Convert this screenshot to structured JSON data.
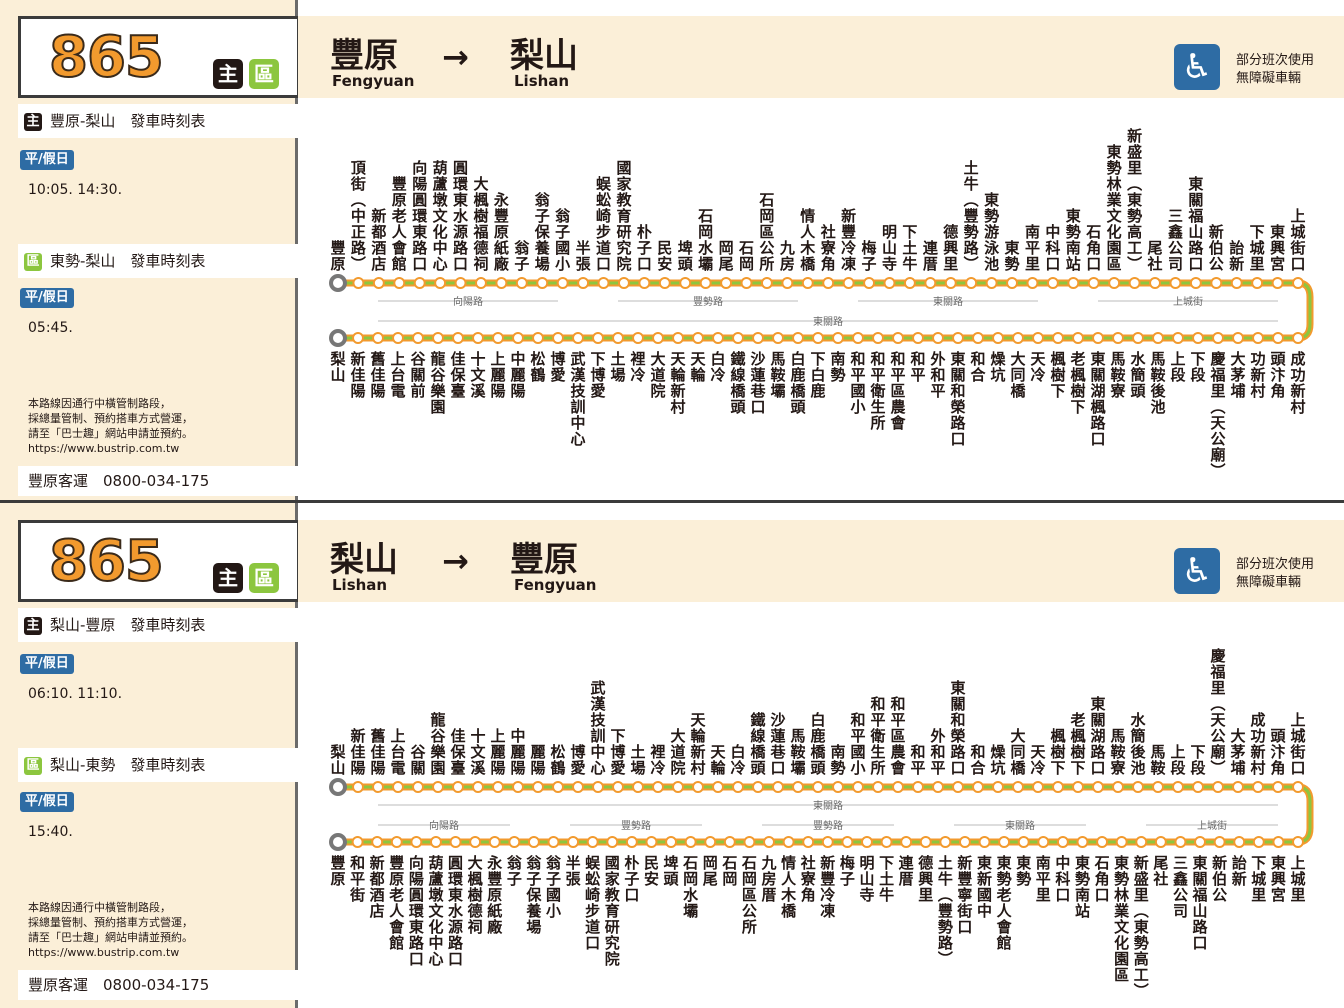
{
  "panels": [
    {
      "route_number": "865",
      "badge_main": "主",
      "badge_zone": "區",
      "from_zh": "豐原",
      "from_en": "Fengyuan",
      "to_zh": "梨山",
      "to_en": "Lishan",
      "arrow": "→",
      "accessible_text_1": "部分班次使用",
      "accessible_text_2": "無障礙車輛",
      "accessible_icon": "wheelchair-icon",
      "section1_title": "豐原-梨山　發車時刻表",
      "section1_pill": "平/假日",
      "section1_times": "10:05. 14:30.",
      "section2_title": "東勢-梨山　發車時刻表",
      "section2_pill": "平/假日",
      "section2_times": "05:45.",
      "note_1": "本路線因通行中橫管制路段，",
      "note_2": "採總量管制、預約搭車方式營運，",
      "note_3": "請至「巴士趣」網站申請並預約。",
      "note_4": "https://www.bustrip.com.tw",
      "company": "豐原客運　0800-034-175",
      "top_stops": [
        "豐原",
        "頂街(中正路)",
        "新都酒店",
        "豐原老人會館",
        "向陽圓環東路口",
        "葫蘆墩文化中心",
        "圓環東水源路口",
        "大楓樹福德祠",
        "永豐原紙廠",
        "翁子",
        "翁子保養場",
        "翁子國小",
        "半張",
        "蜈蚣崎步道口",
        "國家教育研究院",
        "朴子口",
        "民安",
        "埤頭",
        "石岡水壩",
        "岡尾",
        "石岡",
        "石岡區公所",
        "九房",
        "情人木橋",
        "社寮角",
        "新豐冷凍",
        "梅子",
        "明山寺",
        "下土牛",
        "連厝",
        "德興里",
        "土牛(豐勢路)",
        "東勢游泳池",
        "東勢",
        "南平里",
        "中科口",
        "東勢南站",
        "石角口",
        "東勢林業文化園區",
        "新盛里(東勢高工)",
        "尾社",
        "三鑫公司",
        "東關福山路口",
        "新伯公",
        "詒新",
        "下城里",
        "東興宮",
        "上城街口"
      ],
      "bottom_stops": [
        "梨山",
        "新佳陽",
        "舊佳陽",
        "上台電",
        "谷關前",
        "龍谷樂園",
        "佳保臺",
        "十文溪",
        "上麗陽",
        "中麗陽",
        "松鶴",
        "博愛",
        "武漢技訓中心",
        "下博愛",
        "土場",
        "裡冷",
        "大道院",
        "天輪新村",
        "天輪",
        "白冷",
        "鐵線橋頭",
        "沙蓮巷口",
        "馬鞍壩",
        "白鹿橋頭",
        "下白鹿",
        "南勢",
        "和平國小",
        "和平衛生所",
        "和平區農會",
        "和平",
        "外和平",
        "東關和榮路口",
        "和合",
        "燥坑",
        "大同橋",
        "天冷",
        "楓樹下",
        "老楓樹下",
        "東關湖楓路口",
        "馬鞍寮",
        "水簡頭",
        "馬鞍後池",
        "上段",
        "下段",
        "慶福里(天公廟)",
        "大茅埔",
        "功新村",
        "頭汴角",
        "成功新村"
      ],
      "top_segments": [
        {
          "label": "向陽路"
        },
        {
          "label": "豐勢路"
        },
        {
          "label": "東關路"
        },
        {
          "label": "上城街"
        }
      ],
      "bottom_segment": "東關路"
    },
    {
      "route_number": "865",
      "badge_main": "主",
      "badge_zone": "區",
      "from_zh": "梨山",
      "from_en": "Lishan",
      "to_zh": "豐原",
      "to_en": "Fengyuan",
      "arrow": "→",
      "accessible_text_1": "部分班次使用",
      "accessible_text_2": "無障礙車輛",
      "accessible_icon": "wheelchair-icon",
      "section1_title": "梨山-豐原　發車時刻表",
      "section1_pill": "平/假日",
      "section1_times": "06:10. 11:10.",
      "section2_title": "梨山-東勢　發車時刻表",
      "section2_pill": "平/假日",
      "section2_times": "15:40.",
      "note_1": "本路線因通行中橫管制路段，",
      "note_2": "採總量管制、預約搭車方式營運，",
      "note_3": "請至「巴士趣」網站申請並預約。",
      "note_4": "https://www.bustrip.com.tw",
      "company": "豐原客運　0800-034-175",
      "top_stops": [
        "梨山",
        "新佳陽",
        "舊佳陽",
        "上台電",
        "谷關",
        "龍谷樂園",
        "佳保臺",
        "十文溪",
        "上麗陽",
        "中麗陽",
        "麗陽",
        "松鶴",
        "博愛",
        "武漢技訓中心",
        "下博愛",
        "土場",
        "裡冷",
        "大道院",
        "天輪新村",
        "天輪",
        "白冷",
        "鐵線橋頭",
        "沙蓮巷口",
        "馬鞍壩",
        "白鹿橋頭",
        "南勢",
        "和平國小",
        "和平衛生所",
        "和平區農會",
        "和平",
        "外和平",
        "東關和榮路口",
        "和合",
        "燥坑",
        "大同橋",
        "天冷",
        "楓樹下",
        "老楓樹下",
        "東關湖路口",
        "馬鞍寮",
        "水簡後池",
        "馬鞍",
        "上段",
        "下段",
        "慶福里(天公廟)",
        "大茅埔",
        "成功新村",
        "頭汴角",
        "上城街口"
      ],
      "bottom_stops": [
        "豐原",
        "和平街",
        "新都酒店",
        "豐原老人會館",
        "向陽圓環東路口",
        "葫蘆墩文化中心",
        "圓環東水源路口",
        "大楓樹德祠",
        "永豐原紙廠",
        "翁子",
        "翁子保養場",
        "翁子國小",
        "半張",
        "蜈蚣崎步道口",
        "國家教育研究院",
        "朴子口",
        "民安",
        "埤頭",
        "石岡水壩",
        "岡尾",
        "石岡",
        "石岡區公所",
        "九房厝",
        "情人木橋",
        "社寮角",
        "新豐冷凍",
        "梅子",
        "明山寺",
        "下土牛",
        "連厝",
        "德興里",
        "土牛(豐勢路)",
        "新豐寧街口",
        "東新國中",
        "東勢老人會館",
        "東勢",
        "南平里",
        "中科口",
        "東勢南站",
        "石角口",
        "東勢林業文化園區",
        "新盛里(東勢高工)",
        "尾社",
        "三鑫公司",
        "東關福山路口",
        "新伯公",
        "詒新",
        "下城里",
        "東興宮",
        "上城里"
      ],
      "top_segment": "東關路",
      "bottom_segments": [
        {
          "label": "向陽路"
        },
        {
          "label": "豐勢路"
        },
        {
          "label": "豐勢路"
        },
        {
          "label": "東關路"
        },
        {
          "label": "上城街"
        }
      ]
    }
  ],
  "colors": {
    "accent": "#f29a2e",
    "green": "#8cc63f",
    "cream": "#fbefd8",
    "blue": "#2e6ca4",
    "dark": "#231815"
  }
}
